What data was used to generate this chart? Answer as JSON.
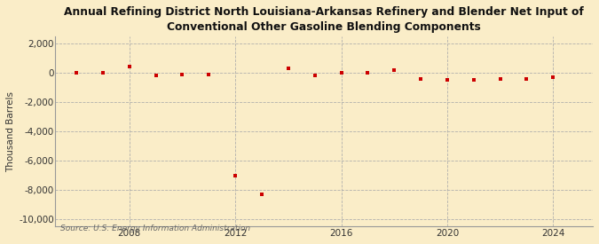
{
  "title": "Annual Refining District North Louisiana-Arkansas Refinery and Blender Net Input of\nConventional Other Gasoline Blending Components",
  "ylabel": "Thousand Barrels",
  "source": "Source: U.S. Energy Information Administration",
  "background_color": "#faedc8",
  "years": [
    2006,
    2007,
    2008,
    2009,
    2010,
    2011,
    2012,
    2013,
    2014,
    2015,
    2016,
    2017,
    2018,
    2019,
    2020,
    2021,
    2022,
    2023,
    2024
  ],
  "values": [
    0,
    0,
    450,
    -150,
    -100,
    -100,
    -7000,
    -8300,
    300,
    -200,
    0,
    0,
    200,
    -400,
    -500,
    -500,
    -400,
    -400,
    -300
  ],
  "marker_color": "#cc0000",
  "grid_color": "#aaaaaa",
  "ylim": [
    -10500,
    2500
  ],
  "yticks": [
    2000,
    0,
    -2000,
    -4000,
    -6000,
    -8000,
    -10000
  ],
  "xticks": [
    2008,
    2012,
    2016,
    2020,
    2024
  ],
  "xlim": [
    2005.2,
    2025.5
  ]
}
